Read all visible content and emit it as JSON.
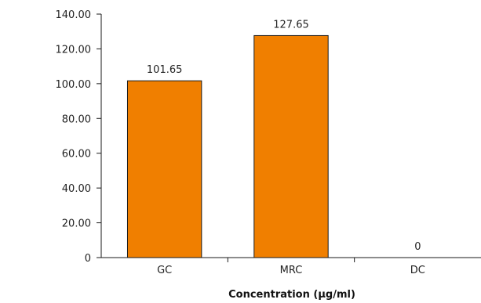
{
  "chart_data": {
    "type": "bar",
    "title": "",
    "xlabel": "Concentration (µg/ml)",
    "ylabel": "",
    "categories": [
      "GC",
      "MRC",
      "DC"
    ],
    "values": [
      101.65,
      127.65,
      0
    ],
    "data_labels": [
      "101.65",
      "127.65",
      "0"
    ],
    "ylim": [
      0,
      140
    ],
    "yticks": [
      0,
      20,
      40,
      60,
      80,
      100,
      120,
      140
    ],
    "ytick_labels": [
      "0",
      "20.00",
      "40.00",
      "60.00",
      "80.00",
      "100.00",
      "120.00",
      "140.00"
    ],
    "bar_color": "#F07F00",
    "bar_edge_color": "#1a1a1a",
    "grid": false,
    "legend": "none"
  }
}
